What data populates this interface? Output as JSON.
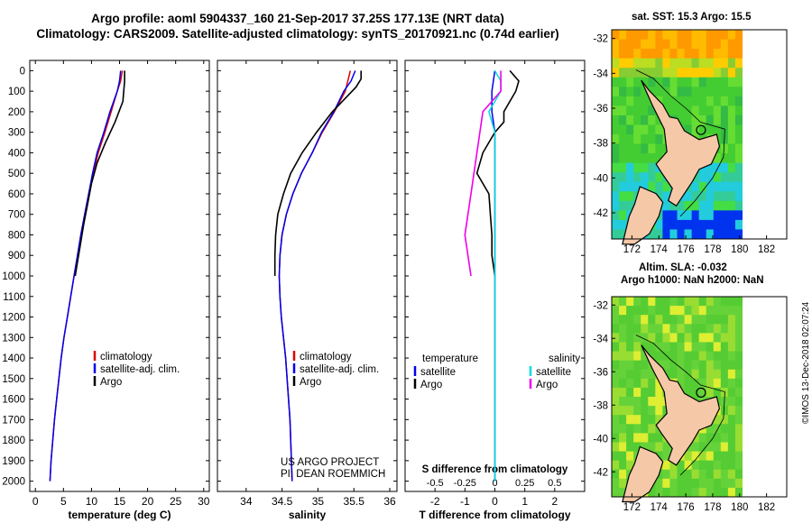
{
  "header": {
    "line1": "Argo profile: aoml 5904337_160 21-Sep-2017 37.25S 177.13E (NRT data)",
    "line2": "Climatology: CARS2009. Satellite-adjusted climatology: synTS_20170921.nc (0.74d earlier)"
  },
  "colors": {
    "climatology": "#dd0000",
    "satellite": "#0000ee",
    "argo": "#000000",
    "sal_satellite": "#00dddd",
    "sal_argo": "#ee00ee",
    "land": "#f5c8a8"
  },
  "chart_data": [
    {
      "id": "temperature-panel",
      "type": "line",
      "xlabel": "temperature (deg C)",
      "ylabel": "",
      "xlim": [
        -1,
        31
      ],
      "ylim": [
        2050,
        -50
      ],
      "xticks": [
        "0",
        "5",
        "10",
        "15",
        "20",
        "25",
        "30"
      ],
      "yticks": [
        "0",
        "100",
        "200",
        "300",
        "400",
        "500",
        "600",
        "700",
        "800",
        "900",
        "1000",
        "1100",
        "1200",
        "1300",
        "1400",
        "1500",
        "1600",
        "1700",
        "1800",
        "1900",
        "2000"
      ],
      "legend_position": "lower-right",
      "series": [
        {
          "name": "climatology",
          "points": [
            [
              15.5,
              0
            ],
            [
              15.2,
              50
            ],
            [
              14.6,
              100
            ],
            [
              13.5,
              200
            ],
            [
              12.4,
              300
            ],
            [
              11.2,
              400
            ],
            [
              10.3,
              500
            ],
            [
              9.5,
              600
            ],
            [
              8.8,
              700
            ],
            [
              8.1,
              800
            ],
            [
              7.5,
              900
            ],
            [
              6.9,
              1000
            ],
            [
              6.3,
              1100
            ],
            [
              5.7,
              1200
            ],
            [
              5.1,
              1300
            ],
            [
              4.6,
              1400
            ],
            [
              4.2,
              1500
            ],
            [
              3.8,
              1600
            ],
            [
              3.4,
              1700
            ],
            [
              3.1,
              1800
            ],
            [
              2.8,
              1900
            ],
            [
              2.6,
              2000
            ]
          ]
        },
        {
          "name": "satellite-adj. clim.",
          "points": [
            [
              15.2,
              0
            ],
            [
              15,
              50
            ],
            [
              14.6,
              100
            ],
            [
              13.3,
              200
            ],
            [
              12.2,
              300
            ],
            [
              11,
              400
            ],
            [
              10.2,
              500
            ],
            [
              9.5,
              600
            ],
            [
              8.8,
              700
            ],
            [
              8.1,
              800
            ],
            [
              7.5,
              900
            ],
            [
              6.9,
              1000
            ],
            [
              6.3,
              1100
            ],
            [
              5.7,
              1200
            ],
            [
              5.1,
              1300
            ],
            [
              4.6,
              1400
            ],
            [
              4.2,
              1500
            ],
            [
              3.8,
              1600
            ],
            [
              3.4,
              1700
            ],
            [
              3.1,
              1800
            ],
            [
              2.8,
              1900
            ],
            [
              2.6,
              2000
            ]
          ]
        },
        {
          "name": "Argo",
          "points": [
            [
              15.9,
              0
            ],
            [
              15.9,
              50
            ],
            [
              15.6,
              150
            ],
            [
              14.2,
              250
            ],
            [
              12.5,
              350
            ],
            [
              11,
              450
            ],
            [
              10,
              550
            ],
            [
              9.3,
              650
            ],
            [
              8.6,
              750
            ],
            [
              8,
              850
            ],
            [
              7.4,
              950
            ],
            [
              7.1,
              1000
            ]
          ]
        }
      ]
    },
    {
      "id": "salinity-panel",
      "type": "line",
      "xlabel": "salinity",
      "ylabel": "",
      "xlim": [
        33.6,
        36.1
      ],
      "ylim": [
        2050,
        -50
      ],
      "xticks": [
        "34",
        "34.5",
        "35",
        "35.5",
        "36"
      ],
      "yticks": [],
      "legend_position": "lower-right",
      "annotation": [
        "US ARGO PROJECT",
        "PI: DEAN ROEMMICH"
      ],
      "series": [
        {
          "name": "climatology",
          "points": [
            [
              35.45,
              0
            ],
            [
              35.38,
              100
            ],
            [
              35.23,
              200
            ],
            [
              35.06,
              300
            ],
            [
              34.92,
              400
            ],
            [
              34.77,
              500
            ],
            [
              34.65,
              600
            ],
            [
              34.56,
              700
            ],
            [
              34.5,
              800
            ],
            [
              34.47,
              900
            ],
            [
              34.46,
              1000
            ],
            [
              34.47,
              1100
            ],
            [
              34.49,
              1200
            ],
            [
              34.52,
              1300
            ],
            [
              34.55,
              1400
            ],
            [
              34.57,
              1500
            ],
            [
              34.59,
              1600
            ],
            [
              34.61,
              1700
            ],
            [
              34.62,
              1800
            ],
            [
              34.63,
              1900
            ],
            [
              34.64,
              2000
            ]
          ]
        },
        {
          "name": "satellite-adj. clim.",
          "points": [
            [
              35.52,
              0
            ],
            [
              35.46,
              50
            ],
            [
              35.36,
              100
            ],
            [
              35.22,
              200
            ],
            [
              35.05,
              300
            ],
            [
              34.92,
              400
            ],
            [
              34.77,
              500
            ],
            [
              34.65,
              600
            ],
            [
              34.56,
              700
            ],
            [
              34.5,
              800
            ],
            [
              34.47,
              900
            ],
            [
              34.46,
              1000
            ],
            [
              34.47,
              1100
            ],
            [
              34.49,
              1200
            ],
            [
              34.52,
              1300
            ],
            [
              34.55,
              1400
            ],
            [
              34.57,
              1500
            ],
            [
              34.59,
              1600
            ],
            [
              34.61,
              1700
            ],
            [
              34.62,
              1800
            ],
            [
              34.63,
              1900
            ],
            [
              34.64,
              2000
            ]
          ]
        },
        {
          "name": "Argo",
          "points": [
            [
              35.6,
              0
            ],
            [
              35.6,
              40
            ],
            [
              35.53,
              80
            ],
            [
              35.42,
              120
            ],
            [
              35.2,
              200
            ],
            [
              34.98,
              300
            ],
            [
              34.78,
              400
            ],
            [
              34.62,
              500
            ],
            [
              34.52,
              600
            ],
            [
              34.44,
              700
            ],
            [
              34.41,
              800
            ],
            [
              34.4,
              900
            ],
            [
              34.4,
              1000
            ]
          ]
        }
      ]
    },
    {
      "id": "difference-panel",
      "type": "line",
      "xlabel": "T difference from climatology",
      "xlabel_secondary": "S difference from climatology",
      "ylabel": "",
      "xlim": [
        -3,
        3
      ],
      "ylim": [
        2050,
        -50
      ],
      "xticks": [
        "-2",
        "-1",
        "0",
        "1",
        "2"
      ],
      "xticks_secondary": [
        "-0.5",
        "-0.25",
        "0",
        "0.25",
        "0.5"
      ],
      "yticks": [],
      "legend_position": "lower-center",
      "legend_temperature_title": "temperature",
      "legend_salinity_title": "salinity",
      "series": [
        {
          "name": "temperature satellite",
          "points": [
            [
              0,
              0
            ],
            [
              -0.1,
              100
            ],
            [
              -0.1,
              200
            ],
            [
              0,
              300
            ],
            [
              0,
              400
            ],
            [
              0,
              500
            ],
            [
              0,
              1000
            ],
            [
              0,
              2000
            ]
          ]
        },
        {
          "name": "temperature Argo",
          "points": [
            [
              0.5,
              0
            ],
            [
              0.8,
              50
            ],
            [
              0.7,
              100
            ],
            [
              0.3,
              200
            ],
            [
              0.3,
              250
            ],
            [
              0,
              300
            ],
            [
              -0.4,
              400
            ],
            [
              -0.6,
              500
            ],
            [
              -0.2,
              600
            ],
            [
              -0.15,
              700
            ],
            [
              -0.1,
              800
            ],
            [
              -0.1,
              900
            ],
            [
              0,
              1000
            ]
          ]
        },
        {
          "name": "salinity satellite",
          "points": [
            [
              0,
              0
            ],
            [
              0.05,
              50
            ],
            [
              0.05,
              100
            ],
            [
              -0.05,
              200
            ],
            [
              0,
              300
            ],
            [
              0,
              400
            ],
            [
              0,
              1000
            ],
            [
              0,
              2000
            ]
          ]
        },
        {
          "name": "salinity Argo",
          "points": [
            [
              0.05,
              0
            ],
            [
              0.05,
              100
            ],
            [
              -0.1,
              200
            ],
            [
              -0.15,
              400
            ],
            [
              -0.2,
              600
            ],
            [
              -0.25,
              800
            ],
            [
              -0.2,
              1000
            ]
          ]
        }
      ]
    }
  ],
  "maps": {
    "sst": {
      "title": "sat. SST: 15.3 Argo: 15.5",
      "lat_ticks": [
        "-32",
        "-34",
        "-36",
        "-38",
        "-40",
        "-42"
      ],
      "lon_ticks": [
        "172",
        "174",
        "176",
        "178",
        "180",
        "182"
      ]
    },
    "sla": {
      "title_line1": "Altim. SLA: -0.032",
      "title_line2": "Argo h1000: NaN h2000: NaN",
      "lat_ticks": [
        "-32",
        "-34",
        "-36",
        "-38",
        "-40",
        "-42"
      ],
      "lon_ticks": [
        "172",
        "174",
        "176",
        "178",
        "180",
        "182"
      ]
    }
  },
  "footer": {
    "stamp": "©IMOS 13-Dec-2018 02:07:24"
  }
}
